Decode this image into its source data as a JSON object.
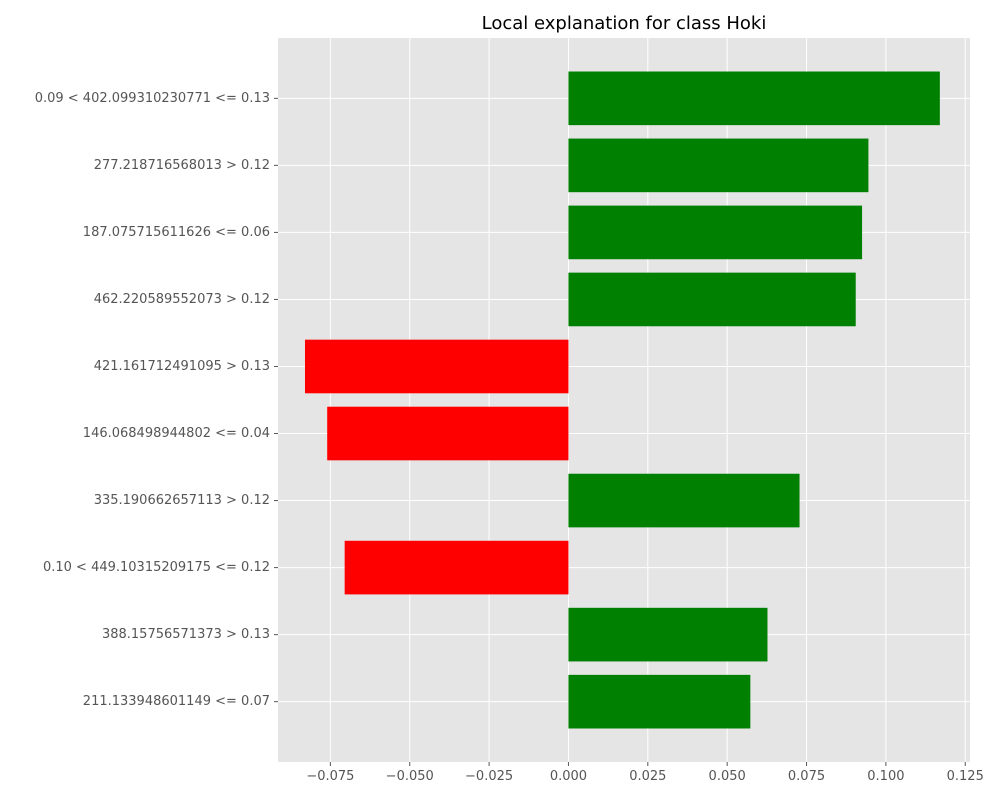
{
  "chart_data": {
    "type": "bar",
    "orientation": "horizontal",
    "title": "Local explanation for class Hoki",
    "xlabel": "",
    "ylabel": "",
    "categories": [
      "0.09 < 402.099310230771 <= 0.13",
      "277.218716568013 > 0.12",
      "187.075715611626 <= 0.06",
      "462.220589552073 > 0.12",
      "421.161712491095 > 0.13",
      "146.068498944802 <= 0.04",
      "335.190662657113 > 0.12",
      "0.10 < 449.10315209175 <= 0.12",
      "388.15756571373 > 0.13",
      "211.133948601149 <= 0.07"
    ],
    "values": [
      0.117,
      0.0945,
      0.0925,
      0.0905,
      -0.083,
      -0.076,
      0.0728,
      -0.0705,
      0.0627,
      0.0573
    ],
    "xlim": [
      -0.0915,
      0.1265
    ],
    "xticks": [
      -0.075,
      -0.05,
      -0.025,
      0.0,
      0.025,
      0.05,
      0.075,
      0.1,
      0.125
    ],
    "xtick_labels": [
      "−0.075",
      "−0.050",
      "−0.025",
      "0.000",
      "0.025",
      "0.050",
      "0.075",
      "0.100",
      "0.125"
    ],
    "grid": true,
    "colors": {
      "positive": "#008000",
      "negative": "#ff0000",
      "background": "#e5e5e5",
      "grid": "#ffffff"
    }
  }
}
